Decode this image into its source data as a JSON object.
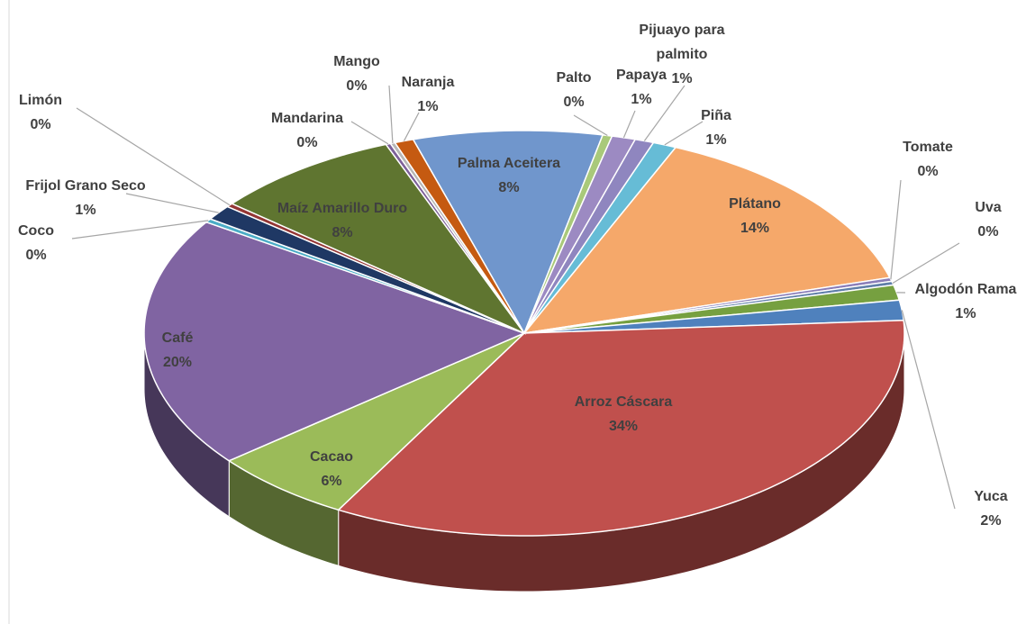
{
  "chart_data": {
    "type": "pie",
    "categories": [
      "Palma Aceitera",
      "Palto",
      "Papaya",
      "Pijuayo para palmito",
      "Piña",
      "Plátano",
      "Tomate",
      "Uva",
      "Algodón Rama",
      "Yuca",
      "Arroz Cáscara",
      "Cacao",
      "Café",
      "Coco",
      "Frijol Grano Seco",
      "Limón",
      "Maíz Amarillo Duro",
      "Mandarina",
      "Mango",
      "Naranja"
    ],
    "values": [
      8,
      0.4,
      1,
      0.8,
      1,
      14,
      0.3,
      0.3,
      1.2,
      1.6,
      34,
      6,
      20,
      0.3,
      1.2,
      0.3,
      8,
      0.2,
      0.2,
      0.8
    ],
    "value_labels": [
      "8%",
      "0%",
      "1%",
      "1%",
      "1%",
      "14%",
      "0%",
      "0%",
      "1%",
      "2%",
      "34%",
      "6%",
      "20%",
      "0%",
      "1%",
      "0%",
      "8%",
      "0%",
      "0%",
      "1%"
    ],
    "colors": [
      "#7096cc",
      "#a9c97a",
      "#9c8ac2",
      "#8f86bf",
      "#66bcd6",
      "#f5a86a",
      "#8a7db8",
      "#5f7ea8",
      "#76a040",
      "#4f81bd",
      "#c0504d",
      "#9bbb59",
      "#8064a2",
      "#4bacc6",
      "#1f3864",
      "#943634",
      "#5f7530",
      "#7d6099",
      "#b7b7b7",
      "#c55a11"
    ]
  }
}
